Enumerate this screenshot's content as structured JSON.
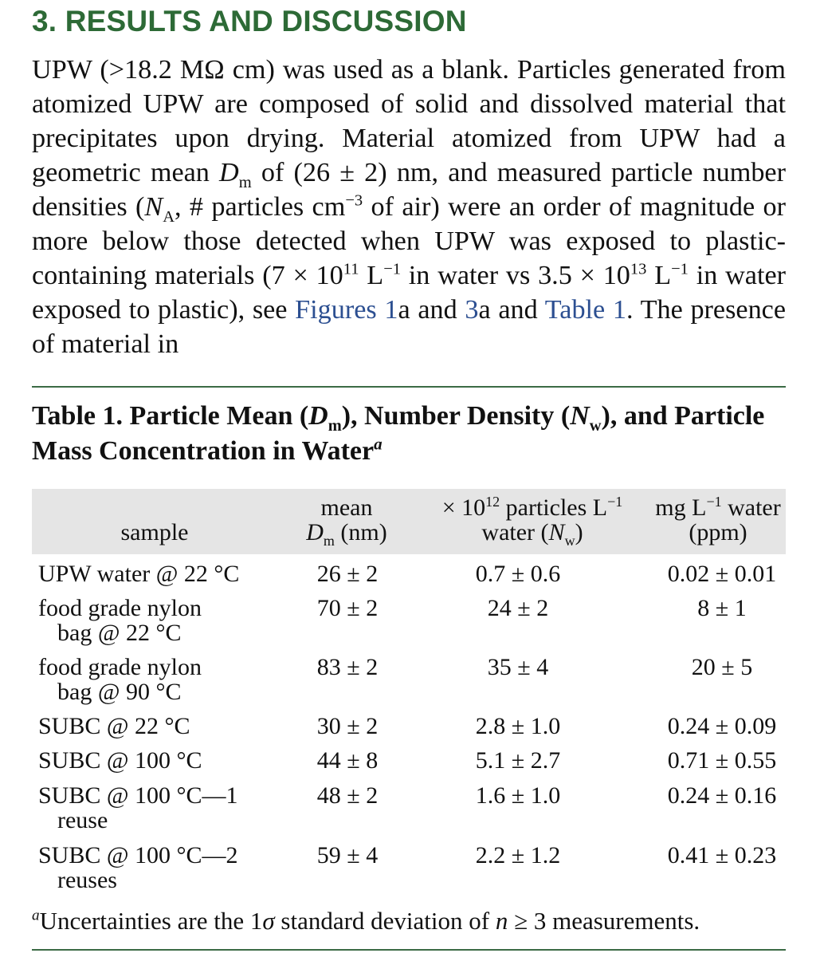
{
  "section": {
    "heading": "3. RESULTS AND DISCUSSION"
  },
  "body": {
    "t01": "UPW (>18.2 MΩ cm) was used as a blank. Particles generated from atomized UPW are composed of solid and dissolved material that precipitates upon drying. Material atomized from UPW had a geometric mean ",
    "t02": "D",
    "t03": "m",
    "t04": " of (26 ± 2) nm, and measured particle number densities (",
    "t05": "N",
    "t06": "A",
    "t07": ", # particles cm",
    "t08": "−3",
    "t09": " of air) were an order of magnitude or more below those detected when UPW was exposed to plastic-containing materials (7 × 10",
    "t10": "11",
    "t11": " L",
    "t12": "−1",
    "t13": " in water vs 3.5 × 10",
    "t14": "13",
    "t15": " L",
    "t16": "−1",
    "t17": " in water exposed to plastic), see ",
    "link1": "Figures 1",
    "t18": "a and ",
    "link2": "3",
    "t19": "a and ",
    "link3": "Table 1",
    "t20": ". The presence of material in"
  },
  "table": {
    "caption": {
      "p1": "Table 1. Particle Mean (",
      "d": "D",
      "m": "m",
      "p2": "), Number Density (",
      "n": "N",
      "w": "w",
      "p3": "), and Particle Mass Concentration in Water",
      "mark": "a"
    },
    "headers": {
      "sample": "sample",
      "mean_l1": "mean",
      "mean_d": "D",
      "mean_m": "m",
      "mean_unit": " (nm)",
      "nw_p1": "× 10",
      "nw_exp": "12",
      "nw_p2": " particles L",
      "nw_exp2": "−1",
      "nw_l2a": "water (",
      "nw_n": "N",
      "nw_w": "w",
      "nw_l2b": ")",
      "mass_p1": "mg L",
      "mass_exp": "−1",
      "mass_p2": " water",
      "mass_l2": "(ppm)"
    },
    "rows": [
      {
        "sample_l1": "UPW water @ 22 °C",
        "sample_l2": "",
        "mean": "26 ± 2",
        "nw": "0.7 ± 0.6",
        "mass": "0.02 ± 0.01"
      },
      {
        "sample_l1": "food grade nylon",
        "sample_l2": "bag @ 22 °C",
        "mean": "70 ± 2",
        "nw": "24 ± 2",
        "mass": "8 ± 1"
      },
      {
        "sample_l1": "food grade nylon",
        "sample_l2": "bag @ 90 °C",
        "mean": "83 ± 2",
        "nw": "35 ± 4",
        "mass": "20 ± 5"
      },
      {
        "sample_l1": "SUBC @ 22 °C",
        "sample_l2": "",
        "mean": "30 ± 2",
        "nw": "2.8 ± 1.0",
        "mass": "0.24 ± 0.09"
      },
      {
        "sample_l1": "SUBC @ 100 °C",
        "sample_l2": "",
        "mean": "44 ± 8",
        "nw": "5.1 ± 2.7",
        "mass": "0.71 ± 0.55"
      },
      {
        "sample_l1": "SUBC @ 100 °C—1",
        "sample_l2": "reuse",
        "mean": "48 ± 2",
        "nw": "1.6 ± 1.0",
        "mass": "0.24 ± 0.16"
      },
      {
        "sample_l1": "SUBC @ 100 °C—2",
        "sample_l2": "reuses",
        "mean": "59 ± 4",
        "nw": "2.2 ± 1.2",
        "mass": "0.41 ± 0.23"
      }
    ],
    "footnote": {
      "mark": "a",
      "p1": "Uncertainties are the 1",
      "sigma": "σ",
      "p2": " standard deviation of ",
      "n": "n",
      "p3": " ≥ 3 measurements."
    }
  }
}
